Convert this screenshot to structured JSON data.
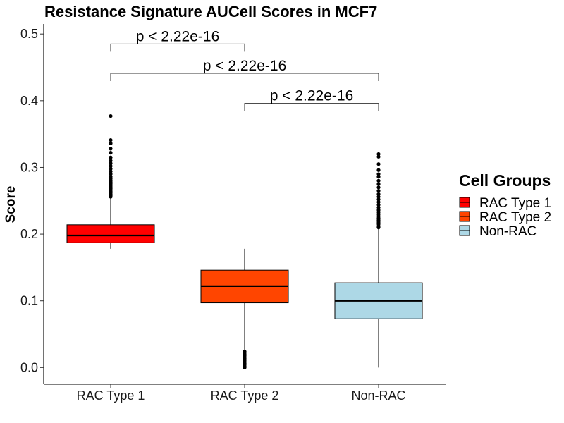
{
  "chart_data": {
    "type": "box",
    "title": "Resistance Signature AUCell Scores in MCF7",
    "xlabel": "",
    "ylabel": "Score",
    "ylim": [
      -0.025,
      0.515
    ],
    "yticks": [
      0.0,
      0.1,
      0.2,
      0.3,
      0.4,
      0.5
    ],
    "ytick_labels": [
      "0.0",
      "0.1",
      "0.2",
      "0.3",
      "0.4",
      "0.5"
    ],
    "categories": [
      "RAC Type 1",
      "RAC Type 2",
      "Non-RAC"
    ],
    "grid": false,
    "groups": [
      {
        "name": "RAC Type 1",
        "color": "#FF0000",
        "whisker_low": 0.178,
        "q1": 0.187,
        "median": 0.198,
        "q3": 0.214,
        "whisker_high": 0.255,
        "outliers": [
          0.256,
          0.258,
          0.26,
          0.262,
          0.264,
          0.266,
          0.268,
          0.27,
          0.272,
          0.274,
          0.276,
          0.278,
          0.28,
          0.283,
          0.286,
          0.29,
          0.294,
          0.298,
          0.302,
          0.306,
          0.31,
          0.315,
          0.322,
          0.328,
          0.336,
          0.341,
          0.377
        ]
      },
      {
        "name": "RAC Type 2",
        "color": "#FF4500",
        "whisker_low": 0.025,
        "q1": 0.097,
        "median": 0.122,
        "q3": 0.146,
        "whisker_high": 0.178,
        "outliers": [
          0.024,
          0.022,
          0.02,
          0.018,
          0.016,
          0.014,
          0.012,
          0.01,
          0.008,
          0.006,
          0.004,
          0.002,
          0.0
        ]
      },
      {
        "name": "Non-RAC",
        "color": "#ADD8E6",
        "whisker_low": 0.0,
        "q1": 0.073,
        "median": 0.1,
        "q3": 0.127,
        "whisker_high": 0.208,
        "outliers": [
          0.21,
          0.212,
          0.215,
          0.218,
          0.221,
          0.224,
          0.227,
          0.23,
          0.233,
          0.236,
          0.24,
          0.244,
          0.248,
          0.252,
          0.256,
          0.26,
          0.265,
          0.27,
          0.275,
          0.28,
          0.286,
          0.29,
          0.296,
          0.305,
          0.316,
          0.32
        ]
      }
    ],
    "comparisons": [
      {
        "from": "RAC Type 1",
        "to": "RAC Type 2",
        "y": 0.485,
        "label": "p < 2.22e-16"
      },
      {
        "from": "RAC Type 1",
        "to": "Non-RAC",
        "y": 0.441,
        "label": "p < 2.22e-16"
      },
      {
        "from": "RAC Type 2",
        "to": "Non-RAC",
        "y": 0.396,
        "label": "p < 2.22e-16"
      }
    ],
    "legend": {
      "title": "Cell Groups",
      "placement": "right",
      "items": [
        {
          "label": "RAC Type 1",
          "color": "#FF0000"
        },
        {
          "label": "RAC Type 2",
          "color": "#FF4500"
        },
        {
          "label": "Non-RAC",
          "color": "#ADD8E6"
        }
      ]
    }
  }
}
